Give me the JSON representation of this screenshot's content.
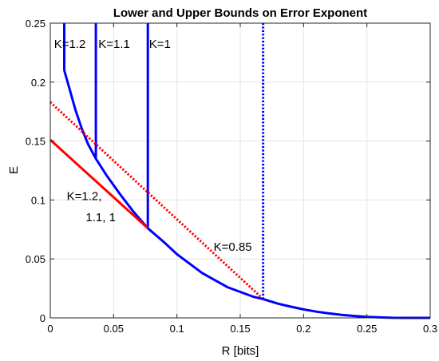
{
  "chart_data": {
    "type": "line",
    "title": "Lower and Upper Bounds on Error Exponent",
    "xlabel": "R [bits]",
    "ylabel": "E",
    "xlim": [
      0,
      0.3
    ],
    "ylim": [
      0,
      0.25
    ],
    "xticks": [
      0,
      0.05,
      0.1,
      0.15,
      0.2,
      0.25,
      0.3
    ],
    "xtick_labels": [
      "0",
      "0.05",
      "0.1",
      "0.15",
      "0.2",
      "0.25",
      "0.3"
    ],
    "yticks": [
      0,
      0.05,
      0.1,
      0.15,
      0.2,
      0.25
    ],
    "ytick_labels": [
      "0",
      "0.05",
      "0.1",
      "0.15",
      "0.2",
      "0.25"
    ],
    "grid": true,
    "series": [
      {
        "color": "#0000ff",
        "style": "solid",
        "x": [
          0.011,
          0.015,
          0.02,
          0.025,
          0.03,
          0.036,
          0.045,
          0.055,
          0.065,
          0.077,
          0.09,
          0.1,
          0.11,
          0.12,
          0.13,
          0.14,
          0.15,
          0.16,
          0.168,
          0.18,
          0.19,
          0.2,
          0.21,
          0.22,
          0.23,
          0.24,
          0.25,
          0.26,
          0.27,
          0.28,
          0.29,
          0.3
        ],
        "y": [
          0.21,
          0.195,
          0.176,
          0.16,
          0.147,
          0.135,
          0.12,
          0.105,
          0.091,
          0.076,
          0.064,
          0.054,
          0.046,
          0.038,
          0.032,
          0.026,
          0.022,
          0.018,
          0.016,
          0.012,
          0.0095,
          0.0072,
          0.0053,
          0.0038,
          0.0026,
          0.0016,
          0.0009,
          0.0004,
          0.0001,
          3e-05,
          0.0,
          0.0
        ]
      },
      {
        "color": "#0000ff",
        "style": "solid",
        "x": [
          0.011,
          0.011
        ],
        "y": [
          0.21,
          0.25
        ]
      },
      {
        "color": "#0000ff",
        "style": "solid",
        "x": [
          0.036,
          0.036
        ],
        "y": [
          0.135,
          0.25
        ]
      },
      {
        "color": "#0000ff",
        "style": "solid",
        "x": [
          0.077,
          0.077
        ],
        "y": [
          0.076,
          0.25
        ]
      },
      {
        "color": "#0000ff",
        "style": "dotted",
        "x": [
          0.168,
          0.168
        ],
        "y": [
          0.016,
          0.25
        ]
      },
      {
        "color": "#ff0000",
        "style": "solid",
        "x": [
          0,
          0.077
        ],
        "y": [
          0.151,
          0.076
        ]
      },
      {
        "color": "#ff0000",
        "style": "dotted",
        "x": [
          0,
          0.166
        ],
        "y": [
          0.183,
          0.018
        ]
      }
    ],
    "annotations": [
      {
        "text": "K=1.2",
        "x": 0.003,
        "y": 0.229
      },
      {
        "text": "K=1.1",
        "x": 0.038,
        "y": 0.229
      },
      {
        "text": "K=1",
        "x": 0.078,
        "y": 0.229
      },
      {
        "text": "K=1.2,",
        "x": 0.013,
        "y": 0.1
      },
      {
        "text": "1.1, 1",
        "x": 0.028,
        "y": 0.082
      },
      {
        "text": "K=0.85",
        "x": 0.129,
        "y": 0.057
      }
    ]
  }
}
